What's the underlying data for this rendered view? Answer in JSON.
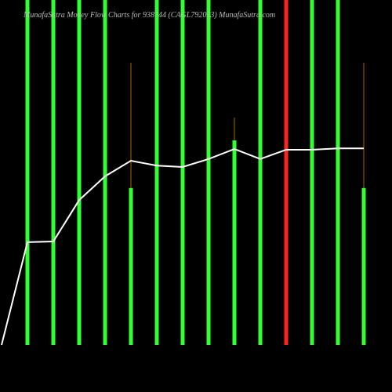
{
  "chart_data": {
    "type": "bar",
    "title": "MunafaSutra Money Flow Charts for 938744 (CAGL792023) MunafaSutra.com",
    "categories": [
      null,
      null,
      null,
      null,
      null,
      null,
      null,
      null,
      null,
      null,
      null,
      null,
      null,
      null,
      null
    ],
    "values": [
      null,
      100,
      100,
      100,
      100,
      45.5,
      100,
      100,
      100,
      59.3,
      100,
      100,
      100,
      100,
      45.5
    ],
    "colors": [
      null,
      "#33ff33",
      "#33ff33",
      "#33ff33",
      "#33ff33",
      "#33ff33",
      "#33ff33",
      "#33ff33",
      "#33ff33",
      "#33ff33",
      "#33ff33",
      "#ff2222",
      "#33ff33",
      "#33ff33",
      "#33ff33"
    ],
    "wicks": [
      null,
      null,
      null,
      null,
      null,
      81.8,
      null,
      null,
      null,
      65.9,
      null,
      null,
      null,
      null,
      81.8
    ],
    "wick_color": "#aa6600",
    "line": {
      "color": "#ffffff",
      "values": [
        0,
        29.8,
        30.0,
        42.0,
        48.9,
        53.4,
        52.0,
        51.6,
        53.9,
        56.8,
        53.9,
        56.6,
        56.6,
        57.0,
        57.0
      ]
    },
    "ylim": [
      0,
      100
    ]
  }
}
